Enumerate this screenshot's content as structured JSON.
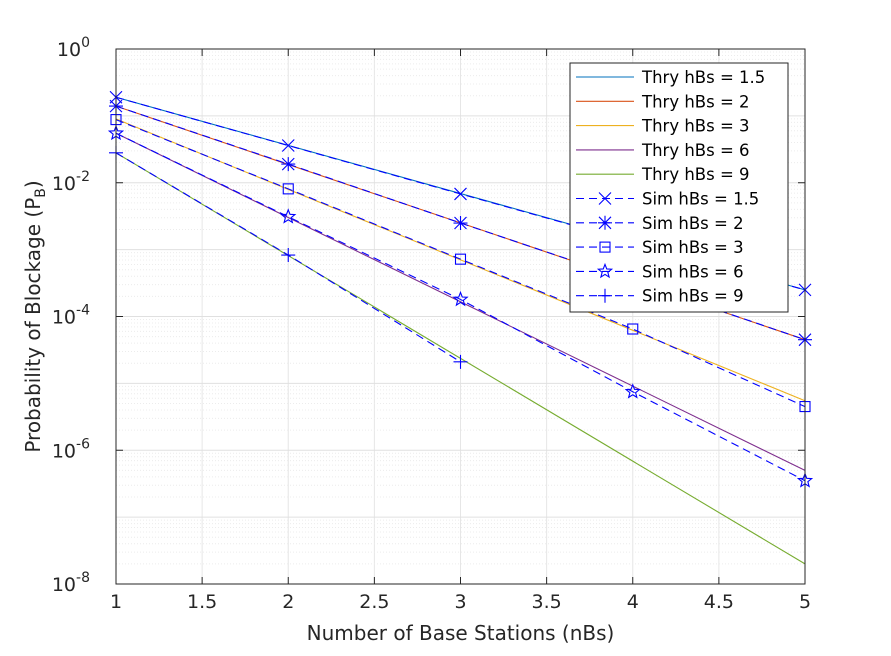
{
  "chart_data": {
    "type": "line",
    "title": "",
    "xlabel": "Number of Base Stations (nBs)",
    "ylabel": {
      "main": "Probability of Blockage (P",
      "sub": "B",
      "close": ")"
    },
    "xlim": [
      1,
      5
    ],
    "ylim": [
      1e-08,
      1
    ],
    "yscale": "log",
    "grid": true,
    "minor_grid": true,
    "legend_position": "top-right",
    "x_ticks": [
      "1",
      "1.5",
      "2",
      "2.5",
      "3",
      "3.5",
      "4",
      "4.5",
      "5"
    ],
    "y_ticks": [
      {
        "base": "10",
        "exp": "0"
      },
      {
        "base": "10",
        "exp": "-2"
      },
      {
        "base": "10",
        "exp": "-4"
      },
      {
        "base": "10",
        "exp": "-6"
      },
      {
        "base": "10",
        "exp": "-8"
      }
    ],
    "series": [
      {
        "name": "Thry hBs = 1.5",
        "color": "#0072bd",
        "style": "solid",
        "marker": "none",
        "x": [
          1,
          5
        ],
        "y": [
          0.19,
          0.00025
        ]
      },
      {
        "name": "Thry hBs = 2",
        "color": "#d95319",
        "style": "solid",
        "marker": "none",
        "x": [
          1,
          5
        ],
        "y": [
          0.14,
          4.5e-05
        ]
      },
      {
        "name": "Thry hBs = 3",
        "color": "#edb120",
        "style": "solid",
        "marker": "none",
        "x": [
          1,
          5
        ],
        "y": [
          0.09,
          5.5e-06
        ]
      },
      {
        "name": "Thry hBs = 6",
        "color": "#7e2f8e",
        "style": "solid",
        "marker": "none",
        "x": [
          1,
          5
        ],
        "y": [
          0.055,
          5e-07
        ]
      },
      {
        "name": "Thry hBs = 9",
        "color": "#77ac30",
        "style": "solid",
        "marker": "none",
        "x": [
          1,
          5
        ],
        "y": [
          0.028,
          2e-08
        ]
      },
      {
        "name": "Sim hBs = 1.5",
        "color": "#0000ff",
        "style": "dashed",
        "marker": "x",
        "x": [
          1,
          2,
          3,
          4,
          5
        ],
        "y": [
          0.19,
          0.036,
          0.0068,
          0.0013,
          0.00025
        ]
      },
      {
        "name": "Sim hBs = 2",
        "color": "#0000ff",
        "style": "dashed",
        "marker": "asterisk",
        "x": [
          1,
          2,
          3,
          4,
          5
        ],
        "y": [
          0.14,
          0.019,
          0.0025,
          0.00034,
          4.5e-05
        ]
      },
      {
        "name": "Sim hBs = 3",
        "color": "#0000ff",
        "style": "dashed",
        "marker": "square",
        "x": [
          1,
          2,
          3,
          4,
          5
        ],
        "y": [
          0.088,
          0.0081,
          0.00072,
          6.5e-05,
          4.5e-06
        ]
      },
      {
        "name": "Sim hBs = 6",
        "color": "#0000ff",
        "style": "dashed",
        "marker": "pentagram",
        "x": [
          1,
          2,
          3,
          4,
          5
        ],
        "y": [
          0.055,
          0.0031,
          0.00018,
          7.5e-06,
          3.5e-07
        ]
      },
      {
        "name": "Sim hBs = 9",
        "color": "#0000ff",
        "style": "dashed",
        "marker": "plus",
        "x": [
          1,
          2,
          3
        ],
        "y": [
          0.028,
          0.00083,
          2.1e-05
        ]
      }
    ]
  }
}
